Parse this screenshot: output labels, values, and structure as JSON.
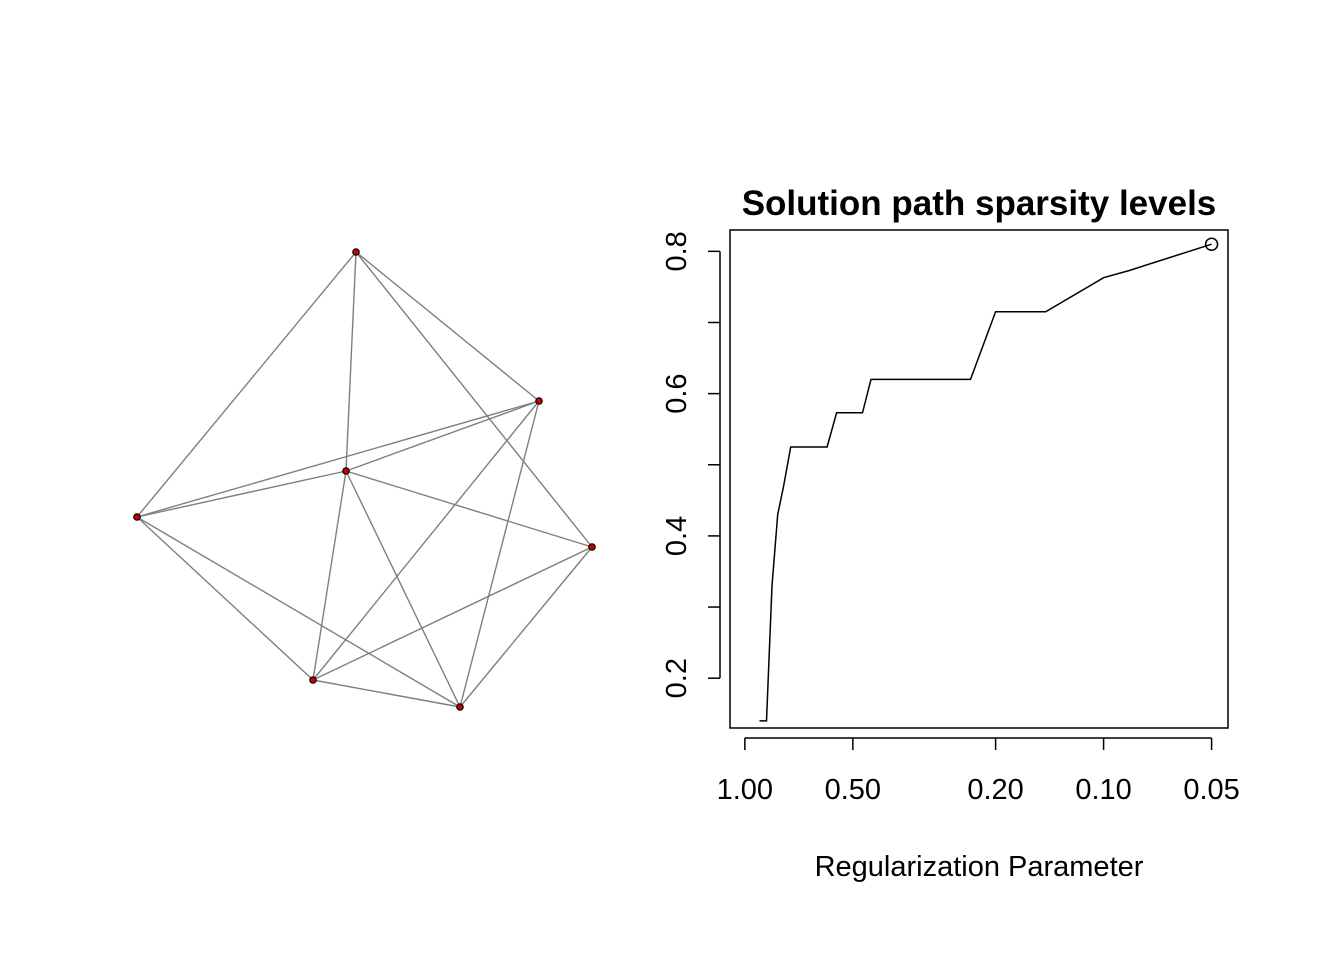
{
  "network": {
    "nodes": [
      "n1",
      "n2",
      "n3",
      "n4",
      "n5",
      "n6"
    ],
    "edges": [
      [
        "n1",
        "n3"
      ],
      [
        "n1",
        "n4"
      ],
      [
        "n1",
        "n6"
      ],
      [
        "n1",
        "n2"
      ],
      [
        "n2",
        "n4"
      ],
      [
        "n2",
        "n3"
      ],
      [
        "n2",
        "n5"
      ],
      [
        "n3",
        "n5"
      ],
      [
        "n3",
        "n6"
      ],
      [
        "n3",
        "n4"
      ],
      [
        "n4",
        "n5"
      ],
      [
        "n4",
        "n6"
      ],
      [
        "n5",
        "n6"
      ]
    ],
    "colors": {
      "edge": "#7f7f7f",
      "node_fill": "#cc0000",
      "node_stroke": "#000000"
    }
  },
  "chart_data": {
    "type": "line",
    "title": "Solution path sparsity levels",
    "xlabel": "Regularization Parameter",
    "ylabel": "",
    "x_scale": "log",
    "x_reversed": true,
    "xlim": [
      1.1,
      0.045
    ],
    "ylim": [
      0.13,
      0.83
    ],
    "x_ticks": [
      1.0,
      0.5,
      0.2,
      0.1,
      0.05
    ],
    "x_tick_labels": [
      "1.00",
      "0.50",
      "0.20",
      "0.10",
      "0.05"
    ],
    "y_ticks": [
      0.2,
      0.3,
      0.4,
      0.5,
      0.6,
      0.7,
      0.8
    ],
    "y_tick_labels": [
      "0.2",
      "",
      "0.4",
      "",
      "0.6",
      "",
      "0.8"
    ],
    "series": [
      {
        "x": [
          0.91,
          0.87,
          0.84,
          0.81,
          0.78,
          0.745,
          0.72,
          0.66,
          0.65,
          0.615,
          0.59,
          0.555,
          0.525,
          0.5,
          0.47,
          0.445,
          0.39,
          0.32,
          0.26,
          0.235,
          0.2,
          0.145,
          0.1,
          0.085,
          0.05
        ],
        "y": [
          0.14,
          0.14,
          0.33,
          0.43,
          0.47,
          0.525,
          0.525,
          0.525,
          0.525,
          0.525,
          0.525,
          0.573,
          0.573,
          0.573,
          0.573,
          0.62,
          0.62,
          0.62,
          0.62,
          0.62,
          0.715,
          0.715,
          0.763,
          0.773,
          0.81
        ]
      }
    ],
    "endpoint_marker": {
      "x": 0.05,
      "y": 0.81
    },
    "grid": false
  }
}
